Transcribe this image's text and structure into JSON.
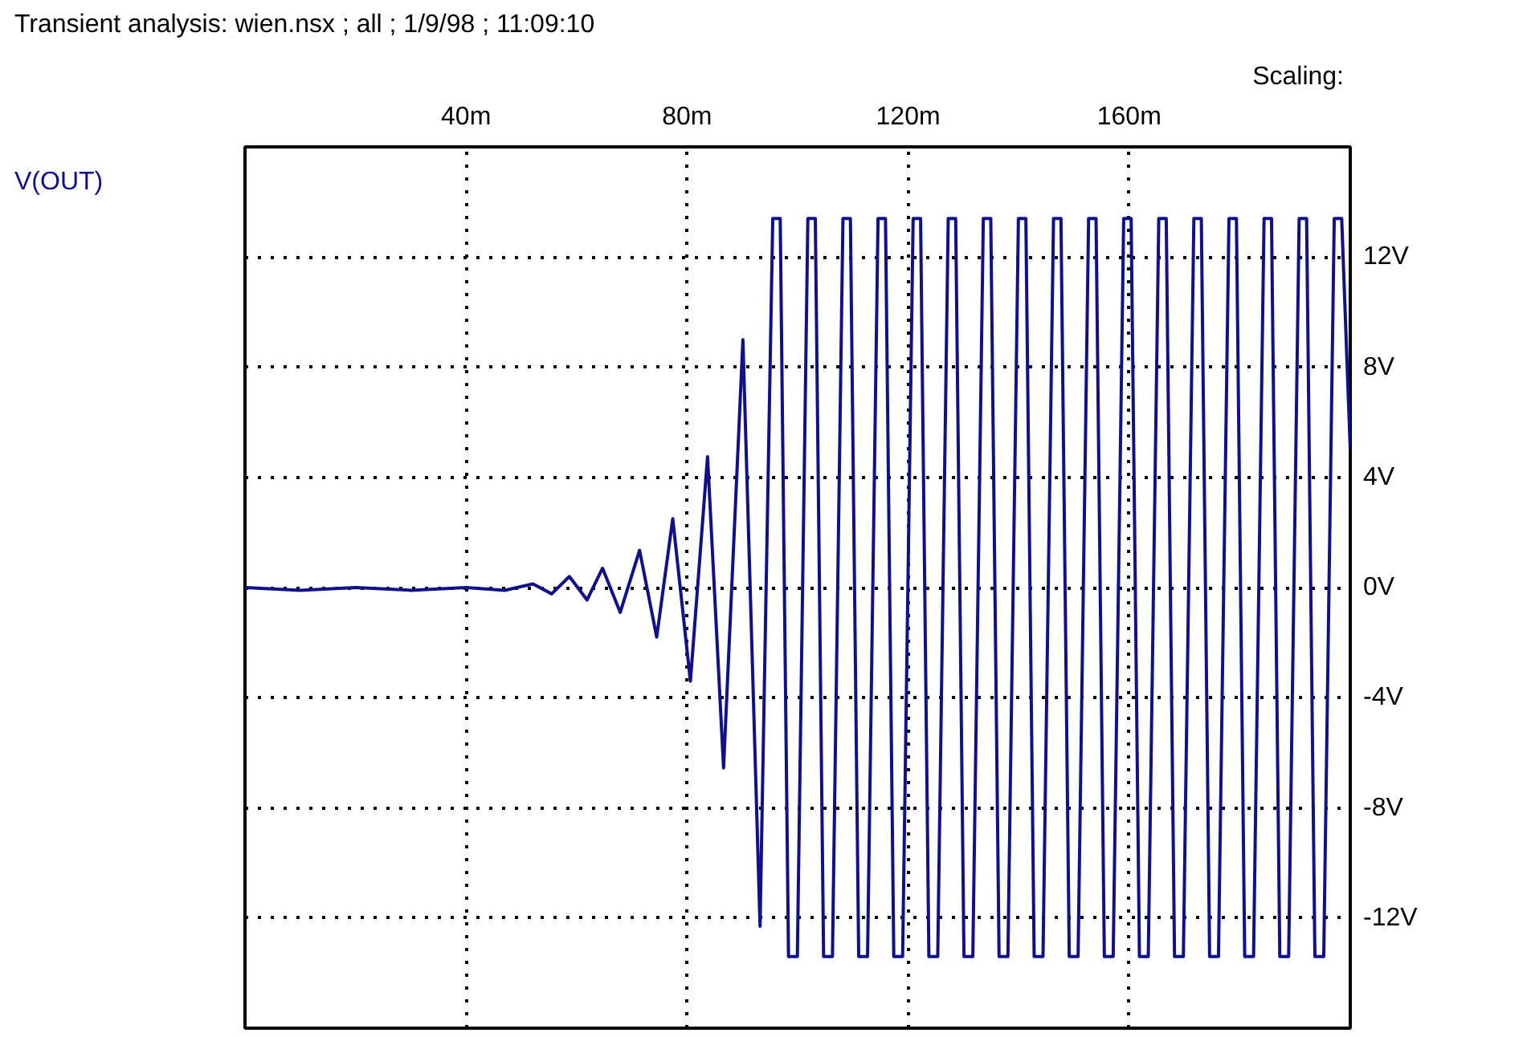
{
  "chart_data": {
    "type": "line",
    "title": "Transient analysis: wien.nsx ; all ; 1/9/98 ; 11:09:10",
    "ylabel": "Scaling:",
    "xlim": [
      0,
      200
    ],
    "ylim": [
      -16,
      16
    ],
    "xticks": [
      {
        "value": 40,
        "label": "40m"
      },
      {
        "value": 80,
        "label": "80m"
      },
      {
        "value": 120,
        "label": "120m"
      },
      {
        "value": 160,
        "label": "160m"
      }
    ],
    "yticks": [
      {
        "value": 12,
        "label": "12V"
      },
      {
        "value": 8,
        "label": "8V"
      },
      {
        "value": 4,
        "label": "4V"
      },
      {
        "value": 0,
        "label": "0V"
      },
      {
        "value": -4,
        "label": "-4V"
      },
      {
        "value": -8,
        "label": "-8V"
      },
      {
        "value": -12,
        "label": "-12V"
      }
    ],
    "grid": true,
    "line_style": "solid",
    "marker": "none",
    "series": [
      {
        "name": "V(OUT)",
        "color": "#10108a",
        "x": [
          0,
          10,
          20,
          30,
          40,
          47,
          52.1,
          55.5,
          58.7,
          61.9,
          64.7,
          67.9,
          71.4,
          74.5,
          77.4,
          80.6,
          83.7,
          86.6,
          90.1,
          93.2,
          95.5,
          96.85,
          98.35,
          99.95,
          101.85,
          103.2,
          104.7,
          106.3,
          108.2,
          109.55,
          111.05,
          112.65,
          114.55,
          115.9,
          117.4,
          119,
          120.9,
          122.25,
          123.75,
          125.35,
          127.25,
          128.6,
          130.1,
          131.7,
          133.6,
          134.95,
          136.45,
          138.05,
          139.95,
          141.3,
          142.8,
          144.4,
          146.3,
          147.65,
          149.15,
          150.75,
          152.65,
          154,
          155.5,
          157.1,
          159,
          160.35,
          161.85,
          163.45,
          165.35,
          166.7,
          168.2,
          169.8,
          171.7,
          173.05,
          174.55,
          176.15,
          178.05,
          179.4,
          180.9,
          182.5,
          184.4,
          185.75,
          187.25,
          188.85,
          190.75,
          192.1,
          193.6,
          195.2,
          197.1,
          198.45,
          200
        ],
        "values": [
          0,
          -0.1,
          0,
          -0.1,
          0,
          -0.1,
          0.13,
          -0.23,
          0.4,
          -0.45,
          0.7,
          -0.9,
          1.35,
          -1.8,
          2.5,
          -3.4,
          4.75,
          -6.55,
          9.0,
          -12.3,
          13.4,
          13.4,
          -13.4,
          -13.4,
          13.4,
          13.4,
          -13.4,
          -13.4,
          13.4,
          13.4,
          -13.4,
          -13.4,
          13.4,
          13.4,
          -13.4,
          -13.4,
          13.4,
          13.4,
          -13.4,
          -13.4,
          13.4,
          13.4,
          -13.4,
          -13.4,
          13.4,
          13.4,
          -13.4,
          -13.4,
          13.4,
          13.4,
          -13.4,
          -13.4,
          13.4,
          13.4,
          -13.4,
          -13.4,
          13.4,
          13.4,
          -13.4,
          -13.4,
          13.4,
          13.4,
          -13.4,
          -13.4,
          13.4,
          13.4,
          -13.4,
          -13.4,
          13.4,
          13.4,
          -13.4,
          -13.4,
          13.4,
          13.4,
          -13.4,
          -13.4,
          13.4,
          13.4,
          -13.4,
          -13.4,
          13.4,
          13.4,
          -13.4,
          -13.4,
          13.4,
          13.4,
          5
        ]
      }
    ]
  }
}
